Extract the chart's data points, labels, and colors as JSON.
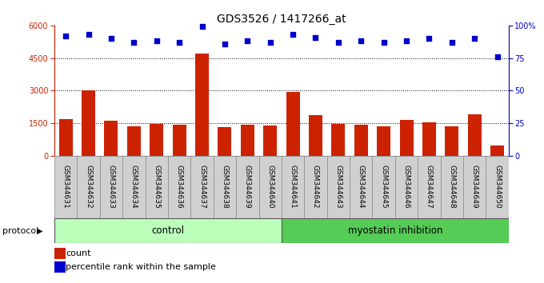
{
  "title": "GDS3526 / 1417266_at",
  "samples": [
    "GSM344631",
    "GSM344632",
    "GSM344633",
    "GSM344634",
    "GSM344635",
    "GSM344636",
    "GSM344637",
    "GSM344638",
    "GSM344639",
    "GSM344640",
    "GSM344641",
    "GSM344642",
    "GSM344643",
    "GSM344644",
    "GSM344645",
    "GSM344646",
    "GSM344647",
    "GSM344648",
    "GSM344649",
    "GSM344650"
  ],
  "bar_values": [
    1700,
    3000,
    1600,
    1350,
    1450,
    1420,
    4700,
    1300,
    1430,
    1380,
    2950,
    1850,
    1450,
    1420,
    1350,
    1650,
    1550,
    1350,
    1900,
    450
  ],
  "percentile_values": [
    92,
    93,
    90,
    87,
    88,
    87,
    99,
    86,
    88,
    87,
    93,
    91,
    87,
    88,
    87,
    88,
    90,
    87,
    90,
    76
  ],
  "bar_color": "#cc2200",
  "dot_color": "#0000cc",
  "ylim_left": [
    0,
    6000
  ],
  "ylim_right": [
    0,
    100
  ],
  "yticks_left": [
    0,
    1500,
    3000,
    4500,
    6000
  ],
  "yticks_right": [
    0,
    25,
    50,
    75,
    100
  ],
  "grid_values": [
    1500,
    3000,
    4500
  ],
  "control_count": 10,
  "myostatin_count": 10,
  "control_label": "control",
  "myostatin_label": "myostatin inhibition",
  "protocol_label": "protocol",
  "legend_bar_label": "count",
  "legend_dot_label": "percentile rank within the sample",
  "bg_color": "#ffffff",
  "label_bg": "#d0d0d0",
  "control_bg": "#bbffbb",
  "myostatin_bg": "#55cc55",
  "title_fontsize": 10,
  "tick_fontsize": 7,
  "sample_label_fontsize": 6.5
}
